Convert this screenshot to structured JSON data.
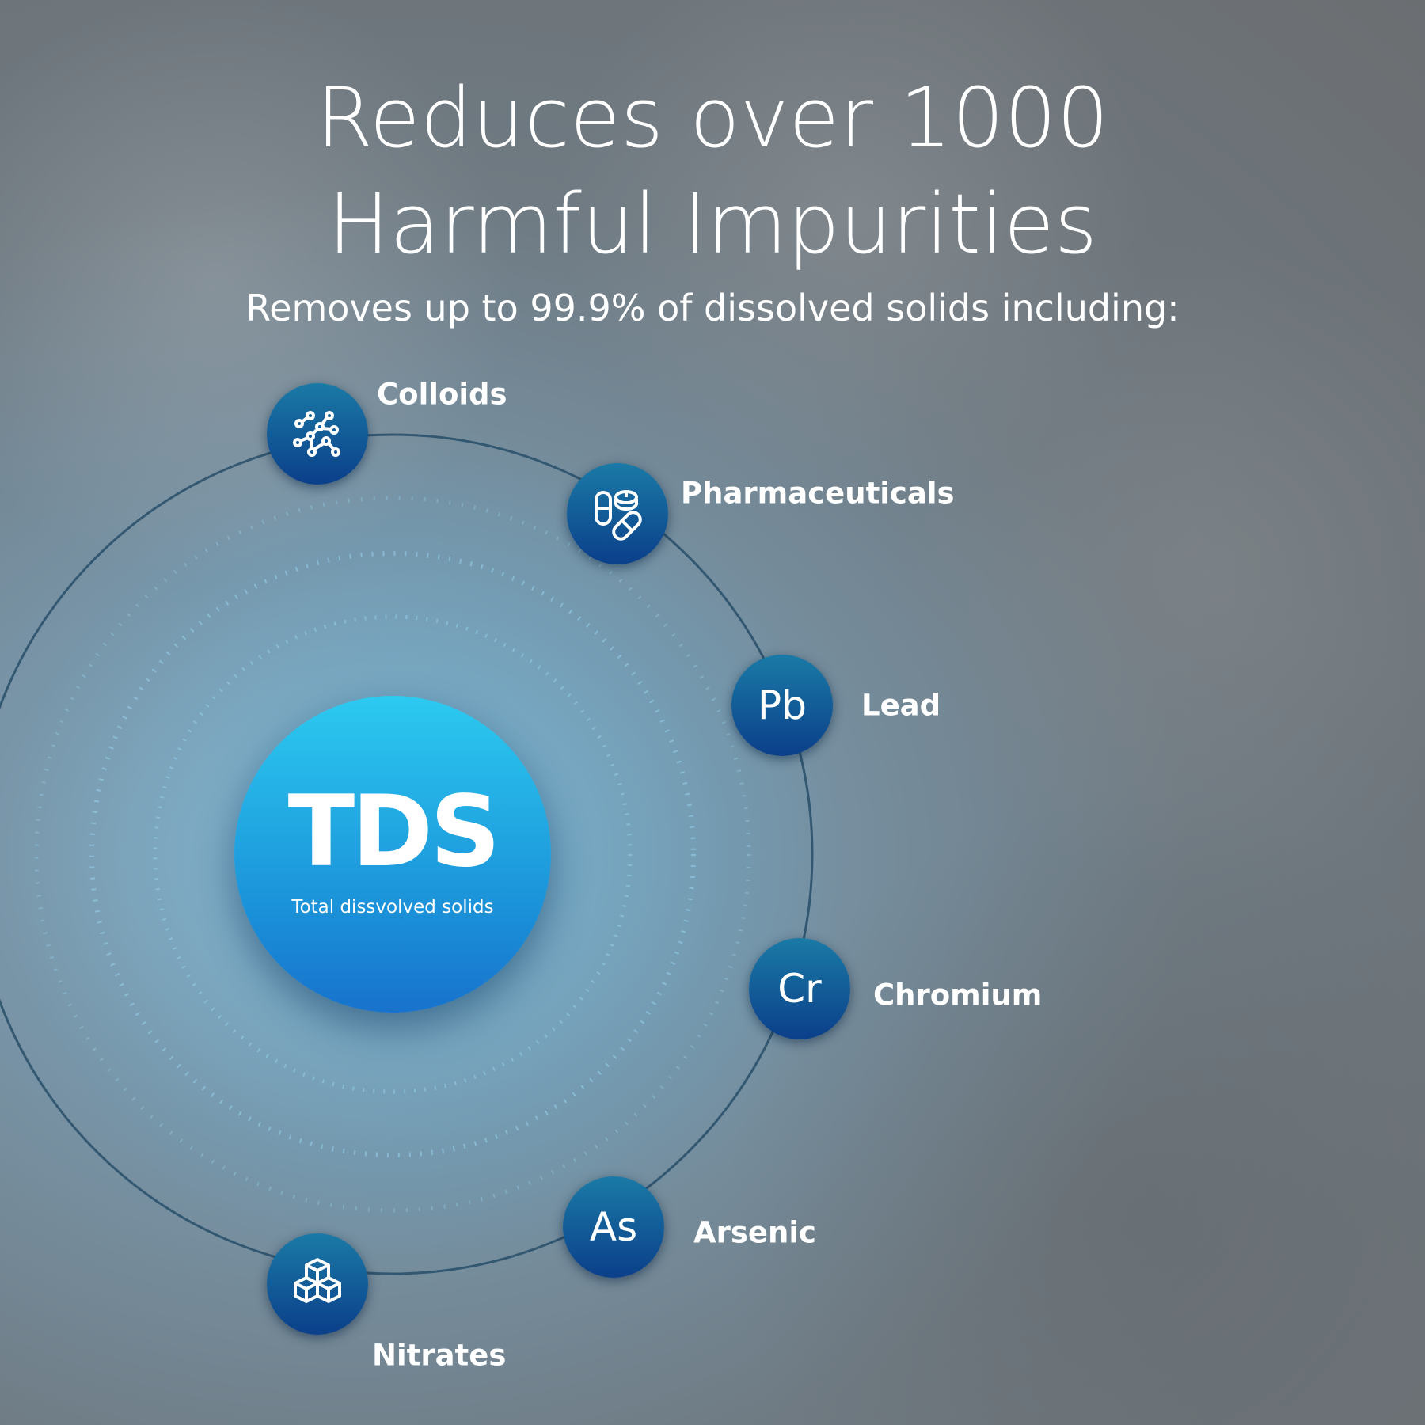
{
  "headline": {
    "line1": "Reduces over 1000",
    "line2": "Harmful Impurities"
  },
  "subheadline": "Removes up to 99.9% of dissolved solids including:",
  "center": {
    "title": "TDS",
    "subtitle": "Total dissvolved solids"
  },
  "items": [
    {
      "label": "Colloids",
      "icon": "molecule-network-icon"
    },
    {
      "label": "Pharmaceuticals",
      "icon": "pills-icon"
    },
    {
      "label": "Lead",
      "symbol": "Pb"
    },
    {
      "label": "Chromium",
      "symbol": "Cr"
    },
    {
      "label": "Arsenic",
      "symbol": "As"
    },
    {
      "label": "Nitrates",
      "icon": "cubes-icon"
    }
  ],
  "colors": {
    "node_top": "#1a7aa6",
    "node_bottom": "#0b3f8a",
    "center_top": "#2ccaf0",
    "center_bottom": "#1872cc"
  }
}
